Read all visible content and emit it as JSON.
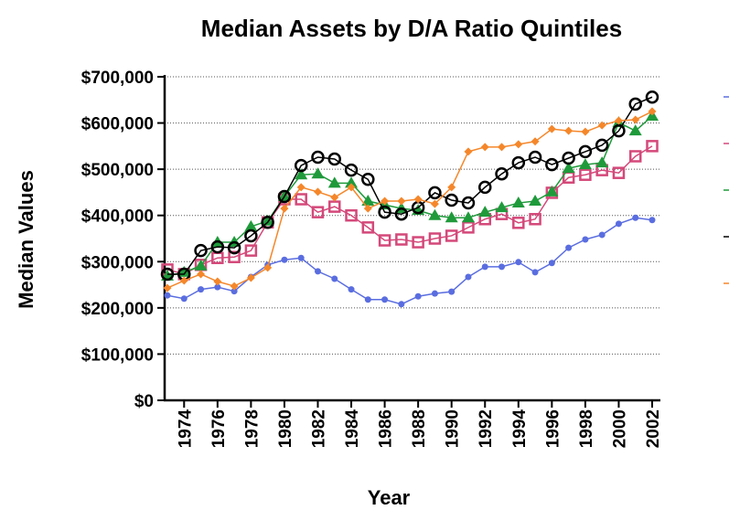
{
  "chart_data": {
    "type": "line",
    "title": "Median Assets by D/A Ratio Quintiles",
    "x_label": "Year",
    "y_label": "Median Values",
    "x": [
      1973,
      1974,
      1975,
      1976,
      1977,
      1978,
      1979,
      1980,
      1981,
      1982,
      1983,
      1984,
      1985,
      1986,
      1987,
      1988,
      1989,
      1990,
      1991,
      1992,
      1993,
      1994,
      1995,
      1996,
      1997,
      1998,
      1999,
      2000,
      2001,
      2002
    ],
    "xlim": [
      1973,
      2002
    ],
    "xticks": [
      1974,
      1976,
      1978,
      1980,
      1982,
      1984,
      1986,
      1988,
      1990,
      1992,
      1994,
      1996,
      1998,
      2000,
      2002
    ],
    "ylim": [
      0,
      700000
    ],
    "yticks": [
      {
        "value": 0,
        "label": "$0"
      },
      {
        "value": 100000,
        "label": "$100,000"
      },
      {
        "value": 200000,
        "label": "$200,000"
      },
      {
        "value": 300000,
        "label": "$300,000"
      },
      {
        "value": 400000,
        "label": "$400,000"
      },
      {
        "value": 500000,
        "label": "$500,000"
      },
      {
        "value": 600000,
        "label": "$600,000"
      },
      {
        "value": 700000,
        "label": "$700,000"
      }
    ],
    "grid": true,
    "series": [
      {
        "color": "#5a6de0",
        "marker": "dot",
        "values": [
          227000,
          220000,
          240000,
          245000,
          236000,
          267000,
          293000,
          304000,
          308000,
          279000,
          263000,
          240000,
          218000,
          218000,
          208000,
          225000,
          231000,
          235000,
          267000,
          289000,
          289000,
          299000,
          277000,
          297000,
          330000,
          348000,
          358000,
          382000,
          395000,
          390000
        ]
      },
      {
        "color": "#d4497a",
        "marker": "square",
        "values": [
          283000,
          273000,
          293000,
          308000,
          310000,
          324000,
          385000,
          435000,
          435000,
          407000,
          419000,
          400000,
          374000,
          346000,
          348000,
          342000,
          350000,
          356000,
          374000,
          392000,
          403000,
          384000,
          392000,
          449000,
          482000,
          488000,
          498000,
          492000,
          528000,
          550000
        ]
      },
      {
        "color": "#1f9a3b",
        "marker": "triangle",
        "values": [
          269000,
          277000,
          291000,
          342000,
          342000,
          376000,
          388000,
          441000,
          488000,
          490000,
          470000,
          470000,
          431000,
          423000,
          415000,
          411000,
          400000,
          395000,
          395000,
          407000,
          417000,
          427000,
          431000,
          451000,
          502000,
          510000,
          514000,
          601000,
          583000,
          615000
        ]
      },
      {
        "color": "#000000",
        "marker": "circle",
        "values": [
          273000,
          273000,
          324000,
          332000,
          330000,
          356000,
          385000,
          441000,
          508000,
          526000,
          522000,
          498000,
          478000,
          407000,
          403000,
          417000,
          449000,
          433000,
          427000,
          461000,
          490000,
          514000,
          526000,
          510000,
          524000,
          538000,
          552000,
          583000,
          641000,
          656000
        ]
      },
      {
        "color": "#f5872a",
        "marker": "diamond",
        "values": [
          243000,
          259000,
          273000,
          257000,
          247000,
          265000,
          287000,
          415000,
          461000,
          451000,
          439000,
          461000,
          415000,
          431000,
          431000,
          435000,
          425000,
          461000,
          538000,
          548000,
          548000,
          554000,
          560000,
          587000,
          583000,
          581000,
          595000,
          605000,
          607000,
          625000
        ]
      }
    ]
  }
}
